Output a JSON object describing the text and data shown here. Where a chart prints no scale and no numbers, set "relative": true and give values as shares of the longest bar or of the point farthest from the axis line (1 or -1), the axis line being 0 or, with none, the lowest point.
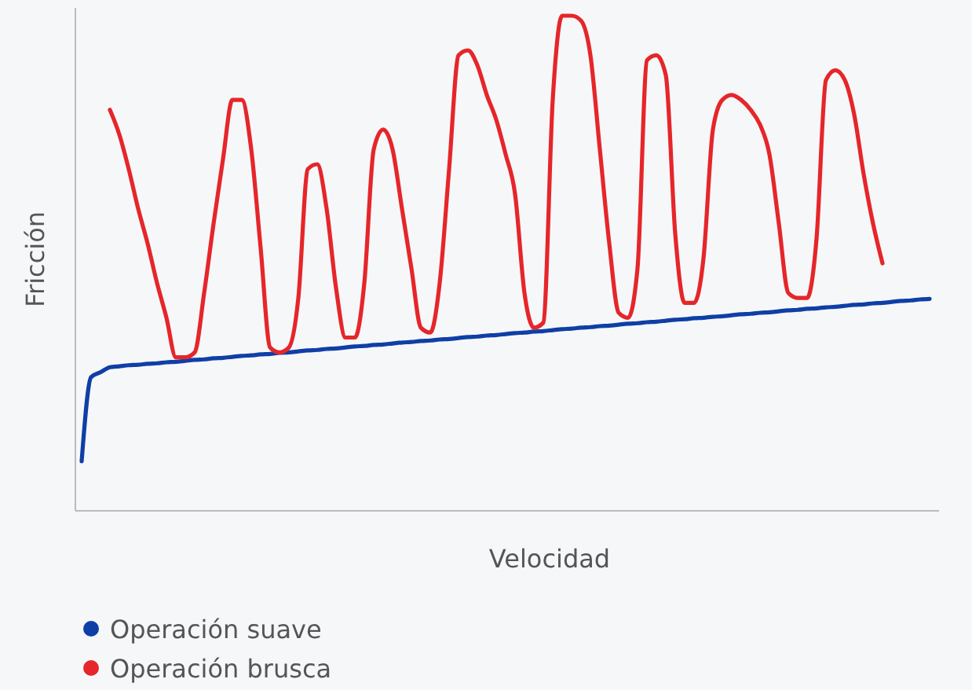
{
  "chart_data": {
    "type": "line",
    "relative": true,
    "xlabel": "Velocidad",
    "ylabel": "Fricción",
    "legend": "bottom",
    "marker": "none",
    "line_style": "solid",
    "categories": [
      null,
      null,
      null,
      null,
      null,
      null,
      null,
      null,
      null,
      null,
      null,
      null,
      null,
      null,
      null,
      null,
      null,
      null,
      null,
      null,
      null,
      null,
      null,
      null,
      null,
      null,
      null,
      null,
      null,
      null,
      null,
      null,
      null,
      null,
      null,
      null,
      null,
      null,
      null,
      null,
      null,
      null,
      null,
      null,
      null,
      null,
      null,
      null,
      null,
      null,
      null,
      null,
      null,
      null,
      null,
      null,
      null,
      null,
      null,
      null,
      null,
      null,
      null,
      null,
      null,
      null,
      null,
      null,
      null,
      null,
      null,
      null,
      null,
      null,
      null,
      null,
      null,
      null,
      null,
      null,
      null,
      null,
      null,
      null,
      null,
      null,
      null,
      null,
      null,
      null,
      null
    ],
    "series": [
      {
        "name": "Operación suave",
        "color": "#0f3fa6",
        "values": [
          0.1,
          0.27,
          0.28,
          0.29,
          0.292,
          0.294,
          0.295,
          0.297,
          0.298,
          0.3,
          0.301,
          0.303,
          0.305,
          0.306,
          0.308,
          0.309,
          0.311,
          0.313,
          0.314,
          0.316,
          0.317,
          0.319,
          0.32,
          0.322,
          0.324,
          0.325,
          0.327,
          0.328,
          0.33,
          0.332,
          0.333,
          0.335,
          0.336,
          0.338,
          0.34,
          0.341,
          0.343,
          0.344,
          0.346,
          0.347,
          0.349,
          0.351,
          0.352,
          0.354,
          0.355,
          0.357,
          0.359,
          0.36,
          0.362,
          0.363,
          0.365,
          0.367,
          0.368,
          0.37,
          0.371,
          0.373,
          0.374,
          0.376,
          0.378,
          0.379,
          0.381,
          0.382,
          0.384,
          0.386,
          0.387,
          0.389,
          0.39,
          0.392,
          0.393,
          0.395,
          0.397,
          0.398,
          0.4,
          0.401,
          0.403,
          0.405,
          0.406,
          0.408,
          0.409,
          0.411,
          0.412,
          0.414,
          0.416,
          0.417,
          0.419,
          0.42,
          0.422,
          0.424,
          0.425,
          0.427,
          0.428
        ]
      },
      {
        "name": "Operación brusca",
        "color": "#e5262a",
        "values": [
          null,
          null,
          null,
          0.81,
          0.76,
          0.69,
          0.61,
          0.54,
          0.46,
          0.39,
          0.31,
          0.31,
          0.32,
          0.44,
          0.58,
          0.71,
          0.83,
          0.83,
          0.73,
          0.53,
          0.33,
          0.32,
          0.33,
          0.43,
          0.69,
          0.7,
          0.61,
          0.45,
          0.35,
          0.35,
          0.46,
          0.73,
          0.77,
          0.73,
          0.61,
          0.49,
          0.37,
          0.36,
          0.46,
          0.69,
          0.92,
          0.93,
          0.9,
          0.84,
          0.79,
          0.72,
          0.64,
          0.44,
          0.37,
          0.38,
          0.83,
          1,
          1,
          0.99,
          0.92,
          0.73,
          0.54,
          0.4,
          0.39,
          0.49,
          0.91,
          0.92,
          0.88,
          0.56,
          0.42,
          0.42,
          0.51,
          0.77,
          0.83,
          0.84,
          0.83,
          0.81,
          0.78,
          0.72,
          0.58,
          0.44,
          0.43,
          0.43,
          0.55,
          0.87,
          0.89,
          0.87,
          0.8,
          0.68,
          0.58,
          0.5,
          null,
          null,
          null,
          null,
          null
        ]
      }
    ]
  }
}
